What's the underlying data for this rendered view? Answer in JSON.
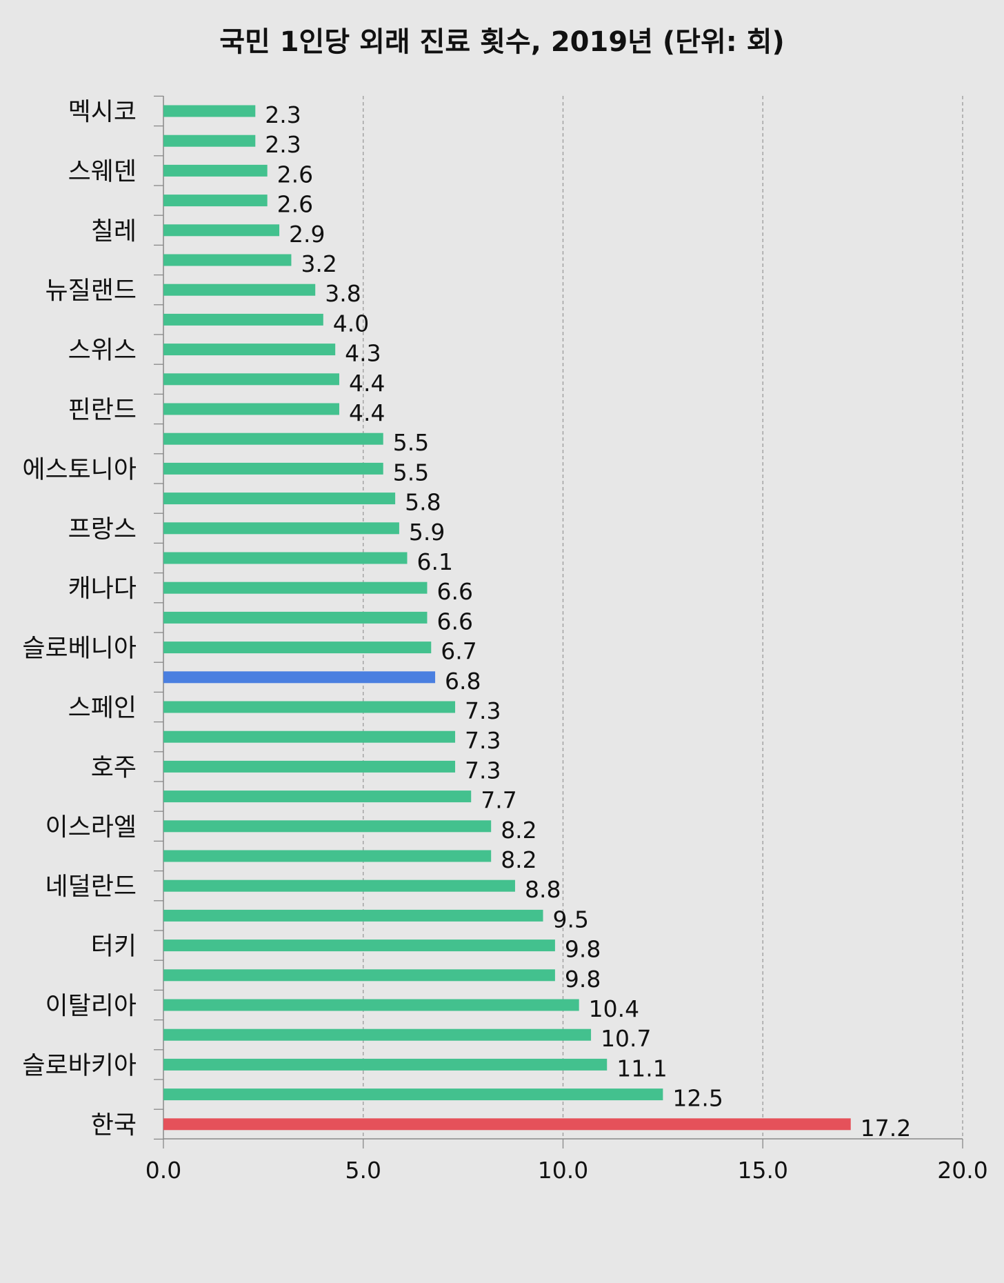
{
  "chart_data": {
    "type": "bar",
    "orientation": "horizontal",
    "title": "국민 1인당 외래 진료 횟수, 2019년 (단위: 회)",
    "xlabel": "",
    "ylabel": "",
    "xlim": [
      0,
      20
    ],
    "xticks": [
      "0.0",
      "5.0",
      "10.0",
      "15.0",
      "20.0"
    ],
    "grid": "vertical dashed",
    "categories": [
      "멕시코",
      "",
      "스웨덴",
      "",
      "칠레",
      "",
      "뉴질랜드",
      "",
      "스위스",
      "",
      "핀란드",
      "",
      "에스토니아",
      "",
      "프랑스",
      "",
      "캐나다",
      "",
      "슬로베니아",
      "",
      "스페인",
      "",
      "호주",
      "",
      "이스라엘",
      "",
      "네덜란드",
      "",
      "터키",
      "",
      "이탈리아",
      "",
      "슬로바키아",
      "",
      "한국"
    ],
    "values": [
      2.3,
      2.3,
      2.6,
      2.6,
      2.9,
      3.2,
      3.8,
      4.0,
      4.3,
      4.4,
      4.4,
      5.5,
      5.5,
      5.8,
      5.9,
      6.1,
      6.6,
      6.6,
      6.7,
      6.8,
      7.3,
      7.3,
      7.3,
      7.7,
      8.2,
      8.2,
      8.8,
      9.5,
      9.8,
      9.8,
      10.4,
      10.7,
      11.1,
      12.5,
      17.2
    ],
    "value_labels": [
      "2.3",
      "2.3",
      "2.6",
      "2.6",
      "2.9",
      "3.2",
      "3.8",
      "4.0",
      "4.3",
      "4.4",
      "4.4",
      "5.5",
      "5.5",
      "5.8",
      "5.9",
      "6.1",
      "6.6",
      "6.6",
      "6.7",
      "6.8",
      "7.3",
      "7.3",
      "7.3",
      "7.7",
      "8.2",
      "8.2",
      "8.8",
      "9.5",
      "9.8",
      "9.8",
      "10.4",
      "10.7",
      "11.1",
      "12.5",
      "17.2"
    ],
    "colors": {
      "default": "#43c18e",
      "highlight_blue": "#4a7fe0",
      "highlight_red": "#e5515a",
      "grid": "#999999",
      "axis": "#888888"
    },
    "highlights": {
      "19": "highlight_blue",
      "34": "highlight_red"
    }
  }
}
